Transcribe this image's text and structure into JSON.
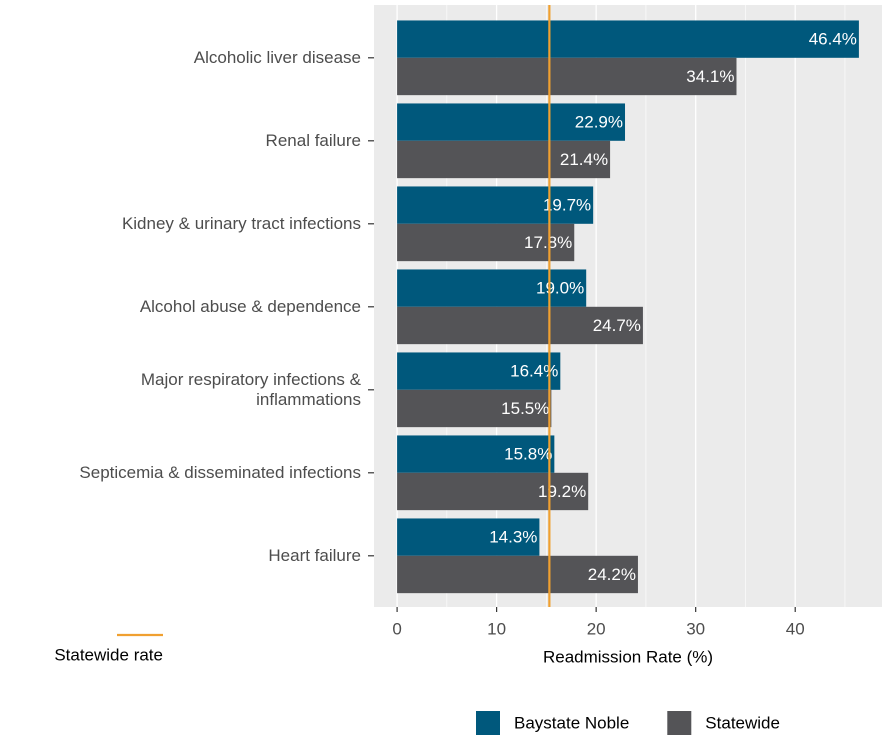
{
  "chart_data": {
    "type": "hbar",
    "categories": [
      "Alcoholic liver disease",
      "Renal failure",
      "Kidney & urinary tract infections",
      "Alcohol abuse & dependence",
      "Major respiratory infections &\ninflammations",
      "Septicemia & disseminated infections",
      "Heart failure"
    ],
    "series": [
      {
        "name": "Baystate Noble",
        "color": "#00587c",
        "values": [
          46.4,
          22.9,
          19.7,
          19.0,
          16.4,
          15.8,
          14.3
        ],
        "value_labels": [
          "46.4%",
          "22.9%",
          "19.7%",
          "19.0%",
          "16.4%",
          "15.8%",
          "14.3%"
        ]
      },
      {
        "name": "Statewide",
        "color": "#545457",
        "values": [
          34.1,
          21.4,
          17.8,
          24.7,
          15.5,
          19.2,
          24.2
        ],
        "value_labels": [
          "34.1%",
          "21.4%",
          "17.8%",
          "24.7%",
          "15.5%",
          "19.2%",
          "24.2%"
        ]
      }
    ],
    "reference_line": {
      "name": "Statewide rate",
      "value": 15.3,
      "color": "#f0a030"
    },
    "xlabel": "Readmission Rate (%)",
    "xlim": [
      -2.32,
      48.72
    ],
    "xticks": [
      0,
      10,
      20,
      30,
      40
    ],
    "grid": true
  }
}
